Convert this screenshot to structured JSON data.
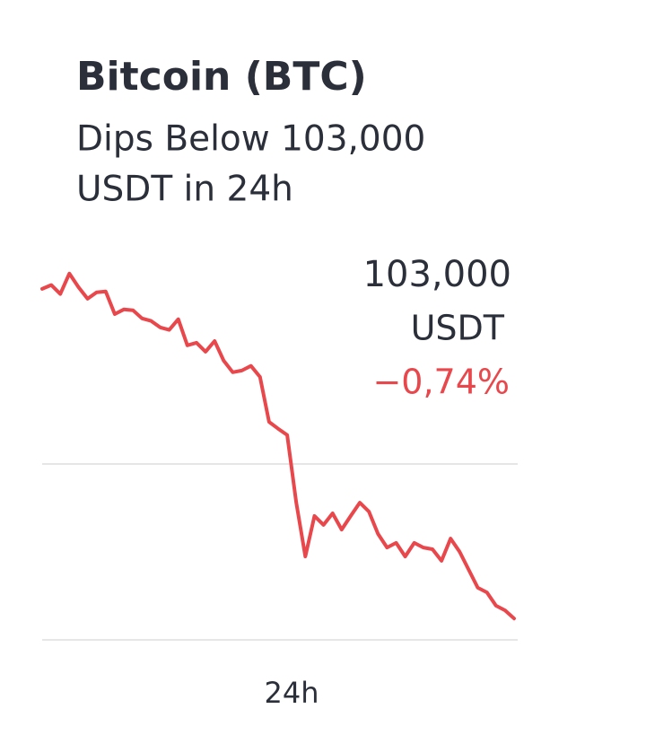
{
  "chart_data": {
    "type": "line",
    "title": "Bitcoin (BTC)",
    "subtitle": [
      "Dips Below 103,000",
      "USDT in 24h"
    ],
    "price": "103,000",
    "unit": "USDT",
    "change": "−0,74%",
    "change_color": "#e8474c",
    "xlabel": "24h",
    "color": "#e8474c",
    "ylim": [
      102950,
      103838
    ],
    "values": [
      103771,
      103780,
      103759,
      103807,
      103775,
      103748,
      103763,
      103765,
      103712,
      103723,
      103721,
      103702,
      103696,
      103681,
      103675,
      103700,
      103639,
      103645,
      103624,
      103649,
      103603,
      103576,
      103580,
      103591,
      103565,
      103460,
      103444,
      103429,
      103271,
      103145,
      103240,
      103219,
      103246,
      103208,
      103240,
      103271,
      103250,
      103198,
      103166,
      103177,
      103145,
      103177,
      103166,
      103162,
      103135,
      103187,
      103156,
      103114,
      103072,
      103061,
      103030,
      103019,
      103000
    ]
  }
}
